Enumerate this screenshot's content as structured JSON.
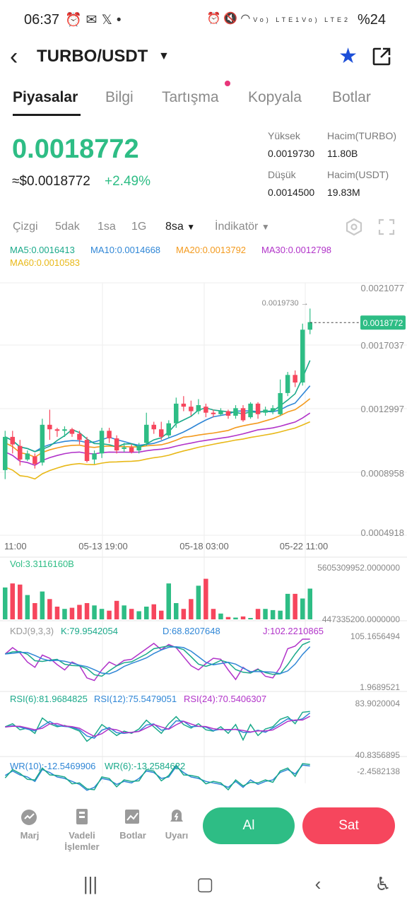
{
  "status_bar": {
    "time": "06:37",
    "left_icons": [
      "alarm-icon",
      "mail-icon",
      "x-icon",
      "dot-icon"
    ],
    "right_icons": [
      "alarm-icon",
      "mute-icon",
      "wifi-icon",
      "signal-lte1-icon",
      "signal-lte2-icon"
    ],
    "lte1": "Vo) LTE1",
    "lte2": "Vo) LTE2",
    "battery": "%24"
  },
  "header": {
    "pair": "TURBO/USDT",
    "favorite_color": "#1d4fd8"
  },
  "tabs": [
    {
      "label": "Piyasalar",
      "active": true
    },
    {
      "label": "Bilgi",
      "active": false
    },
    {
      "label": "Tartışma",
      "active": false,
      "badge": true
    },
    {
      "label": "Kopyala",
      "active": false
    },
    {
      "label": "Botlar",
      "active": false
    }
  ],
  "ticker": {
    "price": "0.0018772",
    "approx_usd": "≈$0.0018772",
    "change": "+2.49%",
    "high_label": "Yüksek",
    "high": "0.0019730",
    "low_label": "Düşük",
    "low": "0.0014500",
    "vol_base_label": "Hacim(TURBO)",
    "vol_base": "11.80B",
    "vol_quote_label": "Hacim(USDT)",
    "vol_quote": "19.83M"
  },
  "toolbar": {
    "line": "Çizgi",
    "m5": "5dak",
    "h1": "1sa",
    "d1": "1G",
    "h8": "8sa",
    "indicator": "İndikatör"
  },
  "ma_legend": {
    "ma5": "MA5:0.0016413",
    "ma10": "MA10:0.0014668",
    "ma20": "MA20:0.0013792",
    "ma30": "MA30:0.0012798",
    "ma60": "MA60:0.0010583"
  },
  "colors": {
    "up": "#2ebd85",
    "down": "#f6465d",
    "ma5": "#1aa98a",
    "ma10": "#2f86d6",
    "ma20": "#f39a1e",
    "ma30": "#b133c9",
    "ma60": "#e8b817"
  },
  "chart_data": {
    "type": "candlestick",
    "y_axis_labels": [
      "0.0021077",
      "0.0017037",
      "0.0012997",
      "0.0008958",
      "0.0004918"
    ],
    "y_range": [
      0.0004918,
      0.0021077
    ],
    "x_axis_labels": [
      "11:00",
      "05-13 19:00",
      "05-18 03:00",
      "05-22 11:00"
    ],
    "high_marker": "0.0019730",
    "current_price_tag": "0.0018772",
    "candles": [
      [
        0.0009,
        0.00112,
        0.00084,
        0.00116
      ],
      [
        0.00112,
        0.00107,
        0.00101,
        0.00116
      ],
      [
        0.00106,
        0.00097,
        0.00093,
        0.0011
      ],
      [
        0.00097,
        0.00101,
        0.00096,
        0.00103
      ],
      [
        0.00099,
        0.00094,
        0.00091,
        0.00101
      ],
      [
        0.00095,
        0.0012,
        0.00093,
        0.00124
      ],
      [
        0.0012,
        0.00117,
        0.0011,
        0.0013
      ],
      [
        0.00117,
        0.00116,
        0.00112,
        0.00118
      ],
      [
        0.00116,
        0.00117,
        0.00112,
        0.00119
      ],
      [
        0.00117,
        0.00114,
        0.00112,
        0.00118
      ],
      [
        0.00114,
        0.0011,
        0.00107,
        0.00116
      ],
      [
        0.0011,
        0.00096,
        0.00095,
        0.00112
      ],
      [
        0.00097,
        0.00101,
        0.00094,
        0.00103
      ],
      [
        0.00101,
        0.00116,
        0.00098,
        0.00118
      ],
      [
        0.00116,
        0.00111,
        0.00108,
        0.00118
      ],
      [
        0.00111,
        0.00103,
        0.00101,
        0.00113
      ],
      [
        0.00104,
        0.00105,
        0.00102,
        0.00108
      ],
      [
        0.00105,
        0.00102,
        0.00101,
        0.00107
      ],
      [
        0.00103,
        0.00106,
        0.00101,
        0.00108
      ],
      [
        0.00108,
        0.0012,
        0.00106,
        0.00128
      ],
      [
        0.0012,
        0.00117,
        0.00114,
        0.00122
      ],
      [
        0.00117,
        0.00112,
        0.0011,
        0.00122
      ],
      [
        0.00113,
        0.00121,
        0.00111,
        0.00123
      ],
      [
        0.00121,
        0.00134,
        0.00118,
        0.00138
      ],
      [
        0.00134,
        0.00132,
        0.00129,
        0.00139
      ],
      [
        0.00132,
        0.00129,
        0.00126,
        0.00136
      ],
      [
        0.00129,
        0.00133,
        0.00127,
        0.00137
      ],
      [
        0.00132,
        0.00128,
        0.00125,
        0.00134
      ],
      [
        0.00128,
        0.00127,
        0.00125,
        0.0013
      ],
      [
        0.00127,
        0.00129,
        0.00126,
        0.00131
      ],
      [
        0.00129,
        0.00126,
        0.00124,
        0.0013
      ],
      [
        0.00126,
        0.00131,
        0.00124,
        0.00133
      ],
      [
        0.00131,
        0.00123,
        0.00122,
        0.00133
      ],
      [
        0.00125,
        0.00134,
        0.00124,
        0.00135
      ],
      [
        0.00134,
        0.00127,
        0.00124,
        0.00135
      ],
      [
        0.00128,
        0.0013,
        0.00126,
        0.00132
      ],
      [
        0.00129,
        0.00131,
        0.00127,
        0.00133
      ],
      [
        0.00127,
        0.00141,
        0.00126,
        0.0015
      ],
      [
        0.00141,
        0.00153,
        0.00139,
        0.00155
      ],
      [
        0.00153,
        0.00148,
        0.00145,
        0.00156
      ],
      [
        0.00148,
        0.00183,
        0.00146,
        0.00187
      ],
      [
        0.00183,
        0.00188,
        0.0018,
        0.00197
      ]
    ],
    "volume": {
      "label": "Vol:3.3116160B",
      "axis_top": "5605309952.0000000",
      "axis_bottom": "447335200.0000000",
      "values": [
        0.55,
        0.62,
        0.6,
        0.42,
        0.28,
        0.48,
        0.35,
        0.22,
        0.18,
        0.2,
        0.25,
        0.28,
        0.24,
        0.18,
        0.15,
        0.32,
        0.24,
        0.18,
        0.14,
        0.22,
        0.26,
        0.15,
        0.62,
        0.28,
        0.18,
        0.35,
        0.58,
        0.7,
        0.18,
        0.1,
        0.04,
        0.03,
        0.05,
        0.0,
        0.18,
        0.18,
        0.16,
        0.15,
        0.44,
        0.44,
        0.36,
        0.53
      ]
    },
    "kdj": {
      "label": "KDJ(9,3,3)",
      "k_label": "K:79.9542054",
      "d_label": "D:68.8207648",
      "j_label": "J:102.2210865",
      "axis_top": "105.1656494",
      "axis_bottom": "1.9689521"
    },
    "rsi": {
      "rsi6_label": "RSI(6):81.9684825",
      "rsi12_label": "RSI(12):75.5479051",
      "rsi24_label": "RSI(24):70.5406307",
      "axis_top": "83.9020004",
      "axis_bottom": "40.8356895"
    },
    "wr": {
      "wr10_label": "WR(10):-12.5469906",
      "wr6_label": "WR(6):-13.2584622",
      "axis_top": "-2.4582138"
    }
  },
  "bottom_bar": {
    "margin": "Marj",
    "futures": "Vadeli İşlemler",
    "bots": "Botlar",
    "alerts": "Uyarı",
    "buy": "Al",
    "sell": "Sat"
  }
}
